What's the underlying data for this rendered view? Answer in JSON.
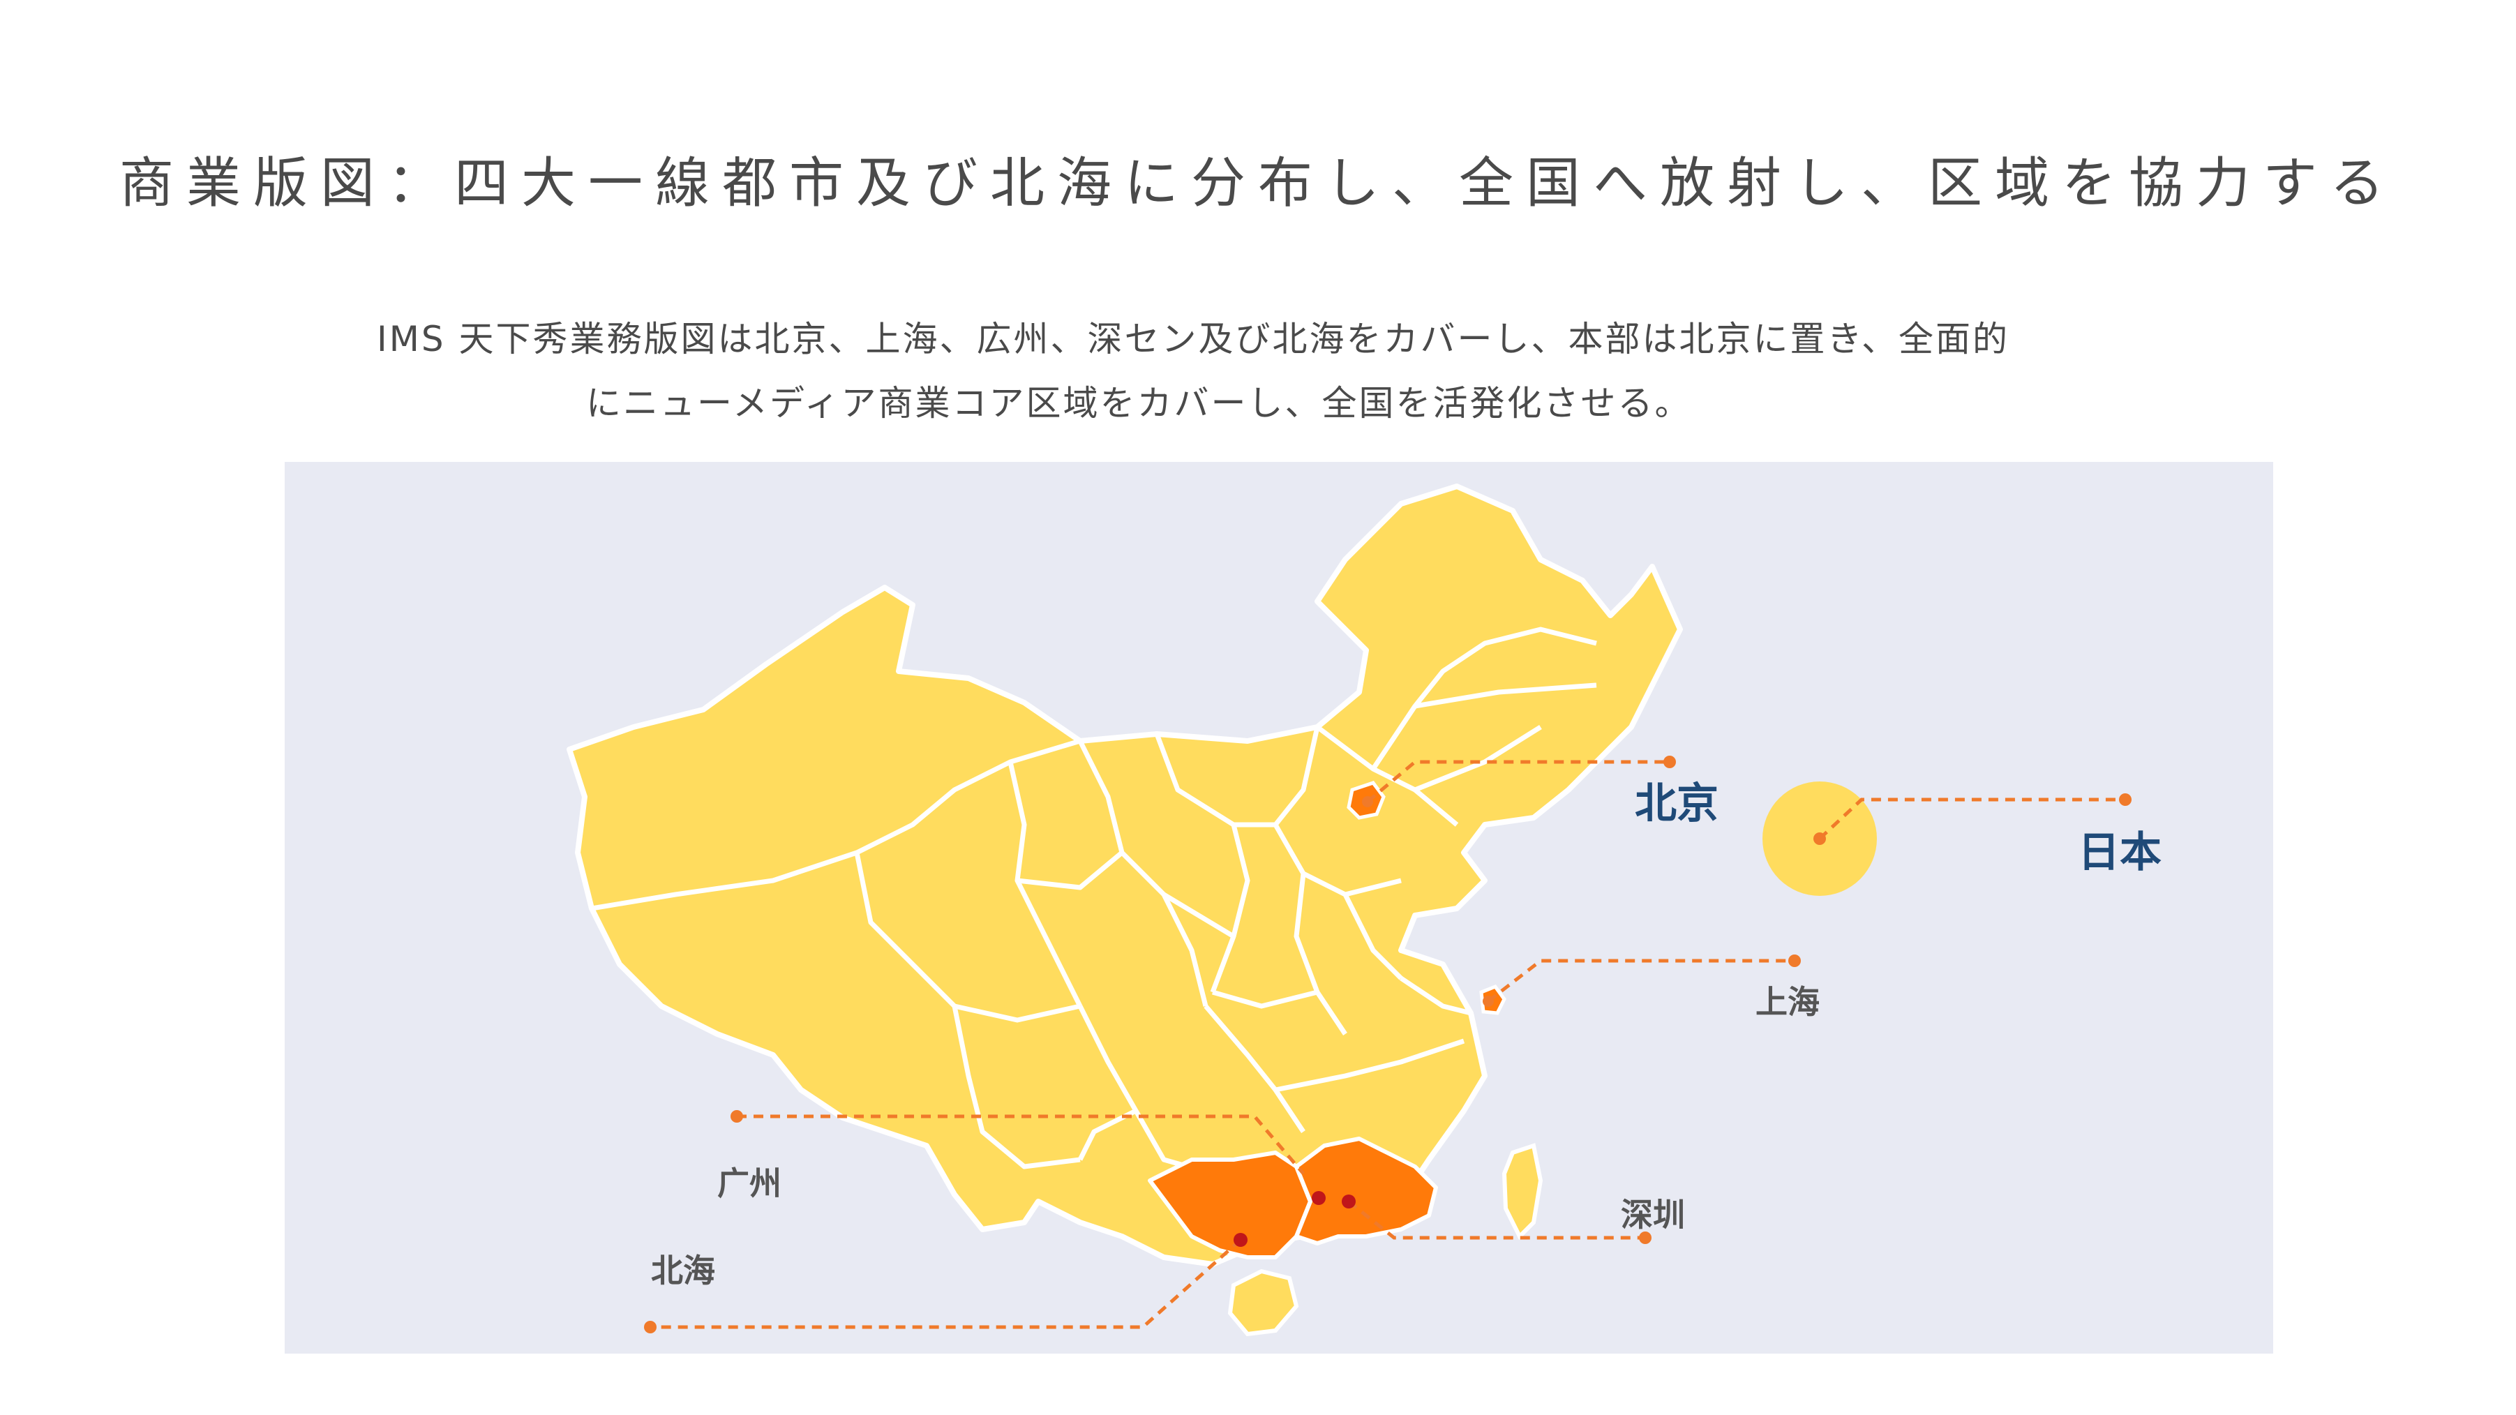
{
  "headline": "商業版図：四大一線都市及び北海に分布し、全国へ放射し、区域を協力する",
  "intro": {
    "line1": "IMS 天下秀業務版図は北京、上海、広州、深セン及び北海をカバーし、本部は北京に置き、全面的",
    "line2": "にニューメディア商業コア区域をカバーし、全国を活発化させる。"
  },
  "map": {
    "labels": {
      "beijing": "北京",
      "japan": "日本",
      "shanghai": "上海",
      "guangzhou": "广州",
      "shenzhen": "深圳",
      "beihai": "北海"
    },
    "colors": {
      "background": "#e8eaf3",
      "land": "#ffdc5e",
      "border": "#ffffff",
      "highlight": "#ff7a0a",
      "leader_line": "#f07a2a",
      "city_dot": "#c0161a",
      "major_label": "#1f4a78",
      "minor_label": "#555555"
    }
  }
}
